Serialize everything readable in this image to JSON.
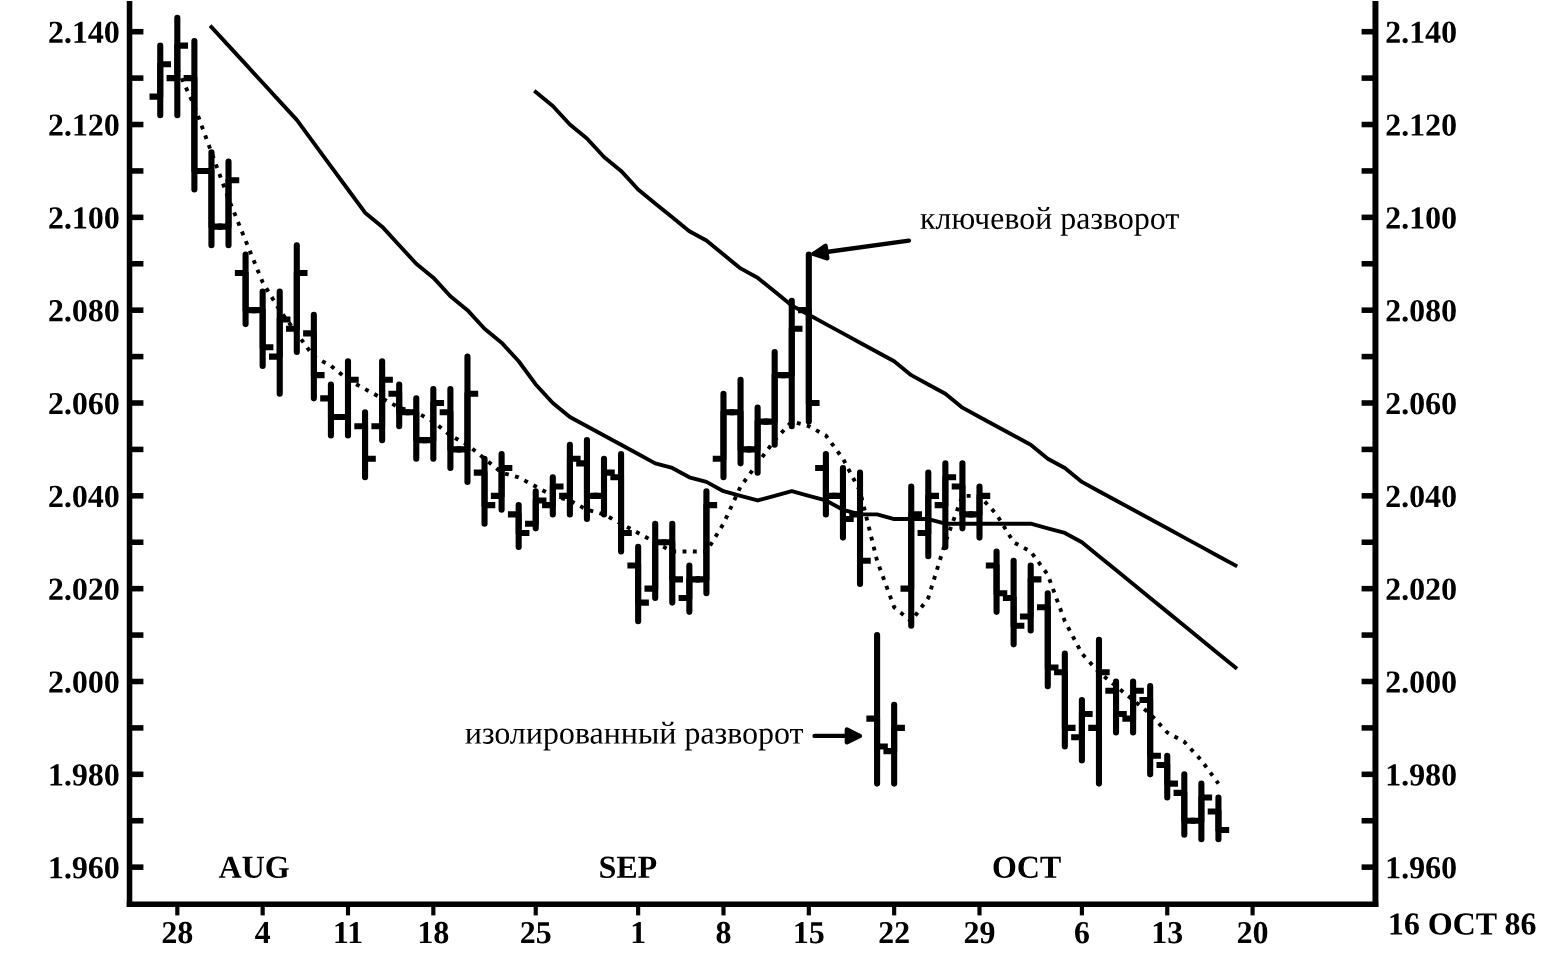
{
  "chart_data": {
    "type": "candlestick",
    "categories": [
      null,
      "28",
      null,
      null,
      null,
      null,
      "4",
      null,
      null,
      null,
      null,
      "11",
      null,
      null,
      null,
      null,
      "18",
      null,
      null,
      null,
      null,
      null,
      "25",
      null,
      null,
      null,
      null,
      null,
      "1",
      null,
      null,
      null,
      null,
      "8",
      null,
      null,
      null,
      null,
      "15",
      null,
      null,
      null,
      null,
      "22",
      null,
      null,
      null,
      null,
      "29",
      null,
      null,
      null,
      null,
      null,
      "6",
      null,
      null,
      null,
      null,
      "13",
      null,
      null,
      null,
      null,
      "20"
    ],
    "ohlc": [
      [
        2.126,
        2.137,
        2.122,
        2.133
      ],
      [
        2.13,
        2.143,
        2.122,
        2.137
      ],
      [
        2.13,
        2.138,
        2.106,
        2.11
      ],
      [
        2.11,
        2.114,
        2.094,
        2.098
      ],
      [
        2.098,
        2.112,
        2.094,
        2.108
      ],
      [
        2.088,
        2.092,
        2.077,
        2.08
      ],
      [
        2.08,
        2.084,
        2.068,
        2.072
      ],
      [
        2.07,
        2.084,
        2.062,
        2.078
      ],
      [
        2.076,
        2.094,
        2.071,
        2.088
      ],
      [
        2.075,
        2.079,
        2.061,
        2.066
      ],
      [
        2.061,
        2.064,
        2.053,
        2.057
      ],
      [
        2.057,
        2.069,
        2.053,
        2.065
      ],
      [
        2.055,
        2.058,
        2.044,
        2.048
      ],
      [
        2.055,
        2.069,
        2.052,
        2.065
      ],
      [
        2.062,
        2.064,
        2.055,
        2.058
      ],
      [
        2.058,
        2.061,
        2.048,
        2.052
      ],
      [
        2.052,
        2.063,
        2.048,
        2.06
      ],
      [
        2.058,
        2.063,
        2.046,
        2.05
      ],
      [
        2.05,
        2.07,
        2.043,
        2.062
      ],
      [
        2.045,
        2.048,
        2.034,
        2.038
      ],
      [
        2.04,
        2.049,
        2.037,
        2.046
      ],
      [
        2.036,
        2.038,
        2.029,
        2.032
      ],
      [
        2.034,
        2.041,
        2.033,
        2.039
      ],
      [
        2.038,
        2.044,
        2.036,
        2.042
      ],
      [
        2.04,
        2.051,
        2.036,
        2.048
      ],
      [
        2.047,
        2.052,
        2.035,
        2.04
      ],
      [
        2.04,
        2.048,
        2.036,
        2.045
      ],
      [
        2.044,
        2.049,
        2.028,
        2.032
      ],
      [
        2.025,
        2.029,
        2.013,
        2.017
      ],
      [
        2.02,
        2.034,
        2.018,
        2.03
      ],
      [
        2.03,
        2.034,
        2.017,
        2.022
      ],
      [
        2.018,
        2.025,
        2.015,
        2.022
      ],
      [
        2.022,
        2.041,
        2.019,
        2.038
      ],
      [
        2.048,
        2.062,
        2.044,
        2.058
      ],
      [
        2.058,
        2.065,
        2.047,
        2.05
      ],
      [
        2.05,
        2.059,
        2.045,
        2.056
      ],
      [
        2.056,
        2.071,
        2.051,
        2.066
      ],
      [
        2.066,
        2.082,
        2.055,
        2.076
      ],
      [
        2.08,
        2.092,
        2.056,
        2.06
      ],
      [
        2.046,
        2.049,
        2.036,
        2.04
      ],
      [
        2.04,
        2.046,
        2.031,
        2.035
      ],
      [
        2.036,
        2.045,
        2.021,
        2.026
      ],
      [
        1.992,
        2.01,
        1.978,
        1.986
      ],
      [
        1.985,
        1.995,
        1.978,
        1.99
      ],
      [
        2.02,
        2.042,
        2.012,
        2.036
      ],
      [
        2.032,
        2.045,
        2.027,
        2.04
      ],
      [
        2.038,
        2.047,
        2.029,
        2.044
      ],
      [
        2.042,
        2.047,
        2.033,
        2.036
      ],
      [
        2.036,
        2.042,
        2.031,
        2.04
      ],
      [
        2.025,
        2.028,
        2.015,
        2.019
      ],
      [
        2.018,
        2.026,
        2.008,
        2.012
      ],
      [
        2.014,
        2.025,
        2.011,
        2.022
      ],
      [
        2.016,
        2.019,
        1.999,
        2.003
      ],
      [
        2.002,
        2.006,
        1.986,
        1.99
      ],
      [
        1.988,
        1.996,
        1.983,
        1.993
      ],
      [
        1.99,
        2.009,
        1.978,
        2.002
      ],
      [
        1.998,
        2.0,
        1.989,
        1.993
      ],
      [
        1.992,
        2.0,
        1.989,
        1.998
      ],
      [
        1.996,
        1.999,
        1.98,
        1.984
      ],
      [
        1.982,
        1.984,
        1.975,
        1.978
      ],
      [
        1.976,
        1.98,
        1.967,
        1.97
      ],
      [
        1.97,
        1.978,
        1.966,
        1.975
      ],
      [
        1.972,
        1.975,
        1.966,
        1.968
      ],
      null,
      null
    ],
    "color": "#000000",
    "series": [
      {
        "type": "line",
        "color": "#000000",
        "line_style": "dotted",
        "values": [
          null,
          2.132,
          2.124,
          2.114,
          2.104,
          2.095,
          2.086,
          2.08,
          2.075,
          2.07,
          2.068,
          2.065,
          2.063,
          2.061,
          2.059,
          2.058,
          2.056,
          2.053,
          2.051,
          2.048,
          2.045,
          2.044,
          2.042,
          2.04,
          2.039,
          2.037,
          2.036,
          2.034,
          2.032,
          2.03,
          2.028,
          2.028,
          2.028,
          2.034,
          2.042,
          2.047,
          2.052,
          2.056,
          2.055,
          2.053,
          2.048,
          2.041,
          2.026,
          2.016,
          2.013,
          2.018,
          2.03,
          2.04,
          2.04,
          2.036,
          2.03,
          2.028,
          2.023,
          2.013,
          2.006,
          2.002,
          1.999,
          1.996,
          1.993,
          1.989,
          1.987,
          1.983,
          1.978,
          null,
          null
        ]
      },
      {
        "type": "line",
        "color": "#000000",
        "line_style": "solid",
        "values": [
          null,
          null,
          null,
          2.141,
          2.137,
          2.133,
          2.129,
          2.125,
          2.121,
          2.116,
          2.111,
          2.106,
          2.101,
          2.098,
          2.094,
          2.09,
          2.087,
          2.083,
          2.08,
          2.076,
          2.073,
          2.069,
          2.064,
          2.06,
          2.057,
          2.055,
          2.053,
          2.051,
          2.049,
          2.047,
          2.046,
          2.044,
          2.043,
          2.041,
          2.04,
          2.039,
          2.04,
          2.041,
          2.04,
          2.039,
          2.037,
          2.036,
          2.036,
          2.035,
          2.035,
          2.035,
          2.034,
          2.034,
          2.034,
          2.034,
          2.034,
          2.034,
          2.033,
          2.032,
          2.03,
          2.027,
          2.024,
          2.021,
          2.018,
          2.015,
          2.012,
          2.009,
          2.006,
          2.003,
          null
        ]
      },
      {
        "type": "line",
        "color": "#000000",
        "line_style": "solid",
        "values": [
          null,
          null,
          null,
          null,
          null,
          null,
          null,
          null,
          null,
          null,
          null,
          null,
          null,
          null,
          null,
          null,
          null,
          null,
          null,
          null,
          null,
          null,
          2.127,
          2.124,
          2.12,
          2.117,
          2.113,
          2.11,
          2.106,
          2.103,
          2.1,
          2.097,
          2.095,
          2.092,
          2.089,
          2.087,
          2.084,
          2.081,
          2.079,
          2.077,
          2.075,
          2.073,
          2.071,
          2.069,
          2.066,
          2.064,
          2.062,
          2.059,
          2.057,
          2.055,
          2.053,
          2.051,
          2.048,
          2.046,
          2.043,
          2.041,
          2.039,
          2.037,
          2.035,
          2.033,
          2.031,
          2.029,
          2.027,
          2.025,
          null
        ]
      }
    ],
    "ylim": [
      1.952,
      2.146
    ],
    "yticks": [
      {
        "value": 1.96,
        "label": "1.960"
      },
      {
        "value": 1.97,
        "label": null
      },
      {
        "value": 1.98,
        "label": "1.980"
      },
      {
        "value": 1.99,
        "label": null
      },
      {
        "value": 2.0,
        "label": "2.000"
      },
      {
        "value": 2.01,
        "label": null
      },
      {
        "value": 2.02,
        "label": "2.020"
      },
      {
        "value": 2.03,
        "label": null
      },
      {
        "value": 2.04,
        "label": "2.040"
      },
      {
        "value": 2.05,
        "label": null
      },
      {
        "value": 2.06,
        "label": "2.060"
      },
      {
        "value": 2.07,
        "label": null
      },
      {
        "value": 2.08,
        "label": "2.080"
      },
      {
        "value": 2.09,
        "label": null
      },
      {
        "value": 2.1,
        "label": "2.100"
      },
      {
        "value": 2.11,
        "label": null
      },
      {
        "value": 2.12,
        "label": "2.120"
      },
      {
        "value": 2.13,
        "label": null
      },
      {
        "value": 2.14,
        "label": "2.140"
      }
    ],
    "y2lim": [
      1.952,
      2.146
    ],
    "y2ticks": [
      {
        "value": 1.96,
        "label": "1.960"
      },
      {
        "value": 1.97,
        "label": null
      },
      {
        "value": 1.98,
        "label": "1.980"
      },
      {
        "value": 1.99,
        "label": null
      },
      {
        "value": 2.0,
        "label": "2.000"
      },
      {
        "value": 2.01,
        "label": null
      },
      {
        "value": 2.02,
        "label": "2.020"
      },
      {
        "value": 2.03,
        "label": null
      },
      {
        "value": 2.04,
        "label": "2.040"
      },
      {
        "value": 2.05,
        "label": null
      },
      {
        "value": 2.06,
        "label": "2.060"
      },
      {
        "value": 2.07,
        "label": null
      },
      {
        "value": 2.08,
        "label": "2.080"
      },
      {
        "value": 2.09,
        "label": null
      },
      {
        "value": 2.1,
        "label": "2.100"
      },
      {
        "value": 2.11,
        "label": null
      },
      {
        "value": 2.12,
        "label": "2.120"
      },
      {
        "value": 2.13,
        "label": null
      },
      {
        "value": 2.14,
        "label": "2.140"
      }
    ],
    "annotations": [
      {
        "text": "ключевой разворот",
        "x": "15",
        "y": 2.092
      },
      "изолированный разворот",
      "AUG",
      "SEP",
      "OCT",
      "16 OCT 86"
    ]
  }
}
